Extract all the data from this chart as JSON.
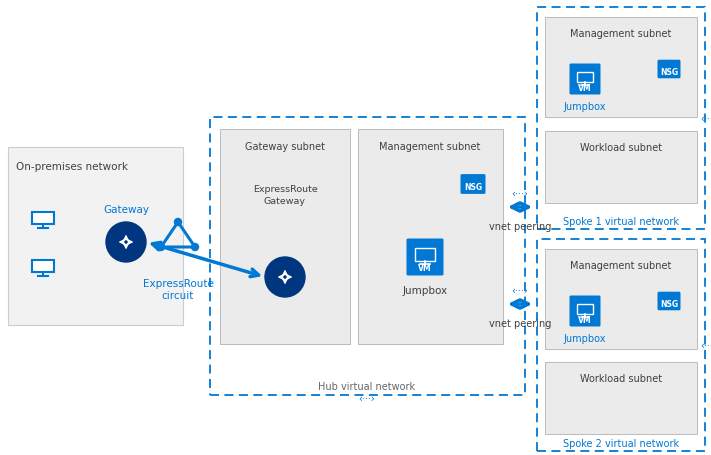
{
  "bg_color": "#ffffff",
  "blue": "#0078d4",
  "blue_dark": "#003580",
  "gray_light": "#f0f0f0",
  "gray_mid": "#e0e0e0",
  "gray_border": "#aaaaaa",
  "dashed_color": "#0078d4",
  "text_dark": "#404040",
  "text_blue": "#0078d4",
  "white": "#ffffff",
  "on_prem_label": "On-premises network",
  "gateway_label": "Gateway",
  "expressroute_label": "ExpressRoute\ncircuit",
  "hub_label": "Hub virtual network",
  "gateway_subnet_label": "Gateway subnet",
  "mgmt_subnet_label": "Management subnet",
  "er_gateway_label": "ExpressRoute\nGateway",
  "jumpbox_label": "Jumpbox",
  "nsg_label": "NSG",
  "vnet_peering_label": "vnet peering",
  "spoke1_label": "Spoke 1 virtual network",
  "spoke2_label": "Spoke 2 virtual network",
  "workload_subnet_label": "Workload subnet",
  "vm_label": "VM"
}
